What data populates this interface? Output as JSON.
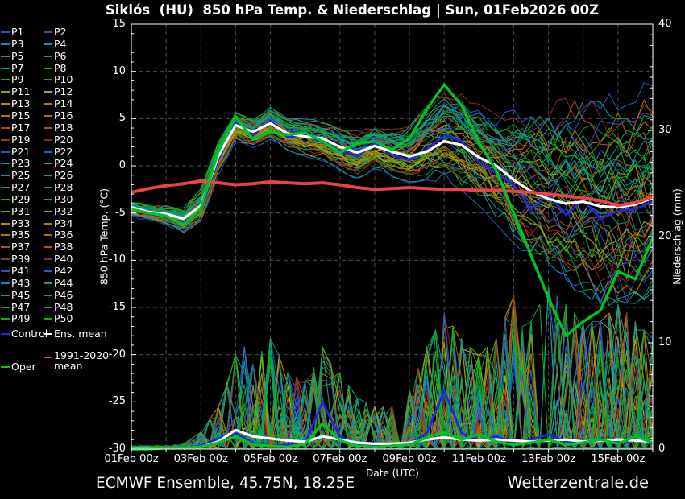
{
  "title": "Siklós  (HU)  850 hPa Temp. & Niederschlag | Sun, 01Feb2026 00Z",
  "footer": {
    "left": "ECMWF Ensemble, 45.75N, 18.25E",
    "right": "Wetterzentrale.de"
  },
  "legend": {
    "members": [
      {
        "label": "P1",
        "color": "#2b50c8"
      },
      {
        "label": "P2",
        "color": "#2060c8"
      },
      {
        "label": "P3",
        "color": "#1f7ec4"
      },
      {
        "label": "P4",
        "color": "#0d9cb4"
      },
      {
        "label": "P5",
        "color": "#0d9e90"
      },
      {
        "label": "P6",
        "color": "#0ca26a"
      },
      {
        "label": "P7",
        "color": "#0aa04e"
      },
      {
        "label": "P8",
        "color": "#0aa63c"
      },
      {
        "label": "P9",
        "color": "#14a824"
      },
      {
        "label": "P10",
        "color": "#12b414"
      },
      {
        "label": "P11",
        "color": "#7cac10"
      },
      {
        "label": "P12",
        "color": "#b2aa0e"
      },
      {
        "label": "P13",
        "color": "#a68e0a"
      },
      {
        "label": "P14",
        "color": "#b68206"
      },
      {
        "label": "P15",
        "color": "#b67410"
      },
      {
        "label": "P16",
        "color": "#c0660c"
      },
      {
        "label": "P17",
        "color": "#aa5406"
      },
      {
        "label": "P18",
        "color": "#b05026"
      },
      {
        "label": "P19",
        "color": "#8e3c1e"
      },
      {
        "label": "P20",
        "color": "#8c2a24"
      },
      {
        "label": "P21",
        "color": "#2b50c8"
      },
      {
        "label": "P22",
        "color": "#2060c8"
      },
      {
        "label": "P23",
        "color": "#1f7ec4"
      },
      {
        "label": "P24",
        "color": "#0d9cb4"
      },
      {
        "label": "P25",
        "color": "#0d9e90"
      },
      {
        "label": "P26",
        "color": "#0ca26a"
      },
      {
        "label": "P27",
        "color": "#0aa04e"
      },
      {
        "label": "P28",
        "color": "#0aa63c"
      },
      {
        "label": "P29",
        "color": "#14a824"
      },
      {
        "label": "P30",
        "color": "#12b414"
      },
      {
        "label": "P31",
        "color": "#7cac10"
      },
      {
        "label": "P32",
        "color": "#b2aa0e"
      },
      {
        "label": "P33",
        "color": "#a68e0a"
      },
      {
        "label": "P34",
        "color": "#b68206"
      },
      {
        "label": "P35",
        "color": "#b67410"
      },
      {
        "label": "P36",
        "color": "#c0660c"
      },
      {
        "label": "P37",
        "color": "#aa5406"
      },
      {
        "label": "P38",
        "color": "#b05026"
      },
      {
        "label": "P39",
        "color": "#8e3c1e"
      },
      {
        "label": "P40",
        "color": "#8c2a24"
      },
      {
        "label": "P41",
        "color": "#2b50c8"
      },
      {
        "label": "P42",
        "color": "#2060c8"
      },
      {
        "label": "P43",
        "color": "#1f7ec4"
      },
      {
        "label": "P44",
        "color": "#0d9cb4"
      },
      {
        "label": "P45",
        "color": "#0d9e90"
      },
      {
        "label": "P46",
        "color": "#0ca26a"
      },
      {
        "label": "P47",
        "color": "#0aa04e"
      },
      {
        "label": "P48",
        "color": "#0aa63c"
      },
      {
        "label": "P49",
        "color": "#14a824"
      },
      {
        "label": "P50",
        "color": "#12b414"
      }
    ],
    "control": {
      "label": "Control",
      "color": "#2326dd"
    },
    "ens_mean": {
      "label": "Ens. mean",
      "color": "#ffffff"
    },
    "clim": {
      "label_line1": "1991-2020",
      "label_line2": "mean",
      "color": "#e84444"
    },
    "oper": {
      "label": "Oper",
      "color": "#00c422"
    }
  },
  "chart_data": {
    "type": "line",
    "title": "Siklós  (HU)  850 hPa Temp. & Niederschlag | Sun, 01Feb2026 00Z",
    "xlabel": "Date (UTC)",
    "ylabel_left": "850 hPa Temp. (°C)",
    "ylabel_right": "Niederschlag (mm)",
    "x_axis": {
      "range_days": [
        0,
        15
      ],
      "tick_labels": [
        "01Feb 00z",
        "03Feb 00z",
        "05Feb 00z",
        "07Feb 00z",
        "09Feb 00z",
        "11Feb 00z",
        "13Feb 00z",
        "15Feb 00z"
      ],
      "tick_days": [
        0,
        2,
        4,
        6,
        8,
        10,
        12,
        14
      ],
      "grid_every_days": 1
    },
    "y_axis_left": {
      "range": [
        -30,
        15
      ],
      "ticks": [
        15,
        10,
        5,
        0,
        -5,
        -10,
        -15,
        -20,
        -25,
        -30
      ],
      "grid_every": 5
    },
    "y_axis_right": {
      "range": [
        0,
        40
      ],
      "ticks": [
        40,
        30,
        20,
        10,
        0
      ]
    },
    "grid": {
      "on": true,
      "style": "dashed"
    },
    "legend_position": "left",
    "time_step_days": 0.5,
    "series": {
      "ens_mean_temp": [
        -4.4,
        -4.9,
        -5.1,
        -5.6,
        -4.2,
        1.0,
        4.3,
        3.6,
        4.5,
        3.4,
        3.1,
        2.9,
        2.0,
        1.4,
        2.1,
        1.5,
        1.0,
        1.5,
        2.6,
        2.2,
        0.9,
        0.0,
        -1.5,
        -2.7,
        -3.5,
        -4.0,
        -3.8,
        -4.3,
        -4.4,
        -4.1,
        -3.4
      ],
      "control_temp": [
        -4.5,
        -5.1,
        -5.4,
        -6.0,
        -4.6,
        0.6,
        4.6,
        3.2,
        4.8,
        3.0,
        3.3,
        2.5,
        1.6,
        1.0,
        2.4,
        1.1,
        0.6,
        1.8,
        3.2,
        2.6,
        0.4,
        -0.8,
        -2.0,
        -4.6,
        -3.0,
        -5.2,
        -3.6,
        -5.6,
        -4.8,
        -4.6,
        -3.8
      ],
      "oper_temp": [
        -4.6,
        -5.0,
        -5.3,
        -6.2,
        -4.5,
        1.5,
        5.2,
        2.8,
        3.6,
        3.3,
        3.5,
        2.6,
        1.4,
        2.4,
        2.6,
        1.7,
        2.9,
        6.0,
        8.6,
        6.4,
        2.5,
        -0.5,
        -5.0,
        -9.5,
        -14.0,
        -18.0,
        -16.5,
        -15.3,
        -11.2,
        -12.0,
        -7.6
      ],
      "clim_1991_2020_temp": [
        -2.8,
        -2.4,
        -2.1,
        -1.9,
        -1.6,
        -1.8,
        -2.0,
        -1.9,
        -1.7,
        -1.8,
        -1.9,
        -1.8,
        -2.0,
        -2.3,
        -2.5,
        -2.4,
        -2.3,
        -2.4,
        -2.5,
        -2.5,
        -2.6,
        -2.6,
        -2.7,
        -2.8,
        -3.0,
        -3.2,
        -3.4,
        -3.7,
        -4.2,
        -3.9,
        -3.3
      ],
      "ensemble_envelope_top_temp": [
        -3.4,
        -3.8,
        -4.0,
        -4.4,
        -2.4,
        2.8,
        6.0,
        5.2,
        6.2,
        5.2,
        5.0,
        4.8,
        4.2,
        3.8,
        4.4,
        4.0,
        4.2,
        6.4,
        8.4,
        7.8,
        6.8,
        6.2,
        6.0,
        6.3,
        6.8,
        7.2,
        7.6,
        7.2,
        8.0,
        8.6,
        9.0
      ],
      "ensemble_envelope_bottom_temp": [
        -5.6,
        -6.0,
        -6.4,
        -7.2,
        -6.2,
        -1.0,
        2.5,
        1.8,
        2.8,
        1.6,
        1.0,
        0.5,
        -0.5,
        -1.5,
        -0.3,
        -1.2,
        -1.8,
        -1.5,
        -1.8,
        -2.6,
        -4.2,
        -6.2,
        -8.2,
        -9.8,
        -11.2,
        -12.6,
        -13.8,
        -14.6,
        -15.0,
        -14.6,
        -13.8
      ],
      "ens_mean_precip": [
        0.0,
        0.1,
        0.1,
        0.1,
        0.2,
        0.7,
        1.8,
        1.2,
        1.0,
        0.8,
        0.7,
        1.2,
        0.9,
        0.6,
        0.5,
        0.5,
        0.6,
        0.9,
        1.1,
        0.9,
        0.8,
        0.9,
        0.8,
        0.7,
        0.8,
        0.9,
        0.7,
        0.8,
        0.9,
        0.8,
        0.7
      ],
      "control_precip": [
        0.0,
        0.0,
        0.1,
        0.1,
        0.3,
        1.0,
        1.5,
        0.6,
        0.3,
        0.4,
        0.6,
        4.4,
        1.2,
        0.5,
        0.3,
        0.4,
        0.5,
        1.5,
        5.5,
        1.5,
        0.8,
        1.2,
        0.6,
        0.9,
        1.4,
        0.7,
        0.5,
        1.0,
        0.6,
        0.8,
        0.5
      ],
      "oper_precip": [
        0.0,
        0.0,
        0.1,
        0.1,
        0.2,
        0.6,
        1.2,
        0.4,
        0.3,
        0.2,
        0.5,
        2.4,
        0.8,
        0.3,
        0.2,
        0.3,
        0.4,
        1.1,
        1.6,
        0.9,
        1.4,
        0.7,
        0.4,
        0.6,
        0.9,
        0.4,
        0.6,
        0.9,
        0.5,
        1.2,
        0.6
      ],
      "member_precip_activity_mm": [
        0.2,
        0.2,
        0.2,
        0.3,
        1.0,
        2.5,
        7.0,
        5.0,
        6.5,
        4.5,
        4.0,
        6.0,
        4.5,
        3.0,
        2.5,
        2.5,
        3.5,
        6.0,
        8.0,
        6.5,
        5.5,
        6.5,
        9.0,
        7.5,
        9.5,
        8.5,
        7.5,
        7.5,
        8.5,
        7.5,
        6.5
      ]
    },
    "colors": {
      "control": "#2326dd",
      "ens_mean": "#ffffff",
      "oper": "#00c422",
      "clim": "#e84444",
      "grid": "#4c4c4c",
      "axis": "#ffffff",
      "background": "#000000"
    }
  }
}
